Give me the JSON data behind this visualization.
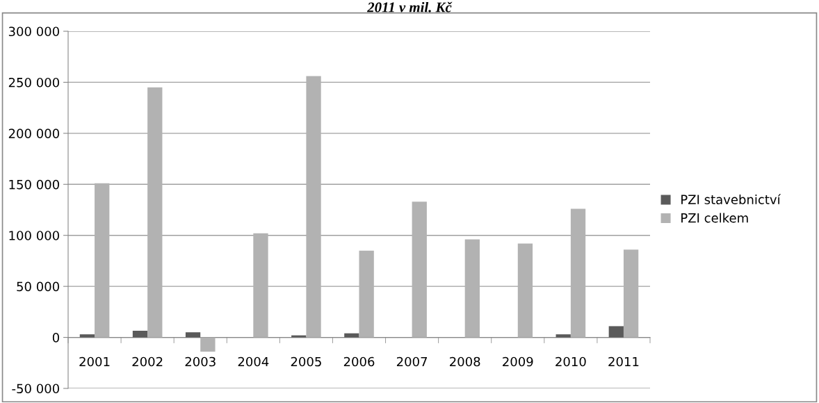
{
  "chart_data": {
    "type": "bar",
    "title": "2011 v mil. Kč",
    "categories": [
      "2001",
      "2002",
      "2003",
      "2004",
      "2005",
      "2006",
      "2007",
      "2008",
      "2009",
      "2010",
      "2011"
    ],
    "series": [
      {
        "name": "PZI stavebnictví",
        "color": "#5a5a5a",
        "values": [
          3000,
          6500,
          5000,
          null,
          2000,
          4000,
          null,
          null,
          null,
          3000,
          11000
        ]
      },
      {
        "name": "PZI celkem",
        "color": "#b2b2b2",
        "values": [
          151000,
          245000,
          -14000,
          102000,
          256000,
          85000,
          133000,
          96000,
          92000,
          126000,
          86000
        ]
      }
    ],
    "ylim": [
      -50000,
      300000
    ],
    "yticks": [
      {
        "value": -50000,
        "label": "-50 000"
      },
      {
        "value": 0,
        "label": "0"
      },
      {
        "value": 50000,
        "label": "50 000"
      },
      {
        "value": 100000,
        "label": "100 000"
      },
      {
        "value": 150000,
        "label": "150 000"
      },
      {
        "value": 200000,
        "label": "200 000"
      },
      {
        "value": 250000,
        "label": "250 000"
      },
      {
        "value": 300000,
        "label": "300 000"
      }
    ],
    "grid": "y",
    "legend": "right"
  }
}
